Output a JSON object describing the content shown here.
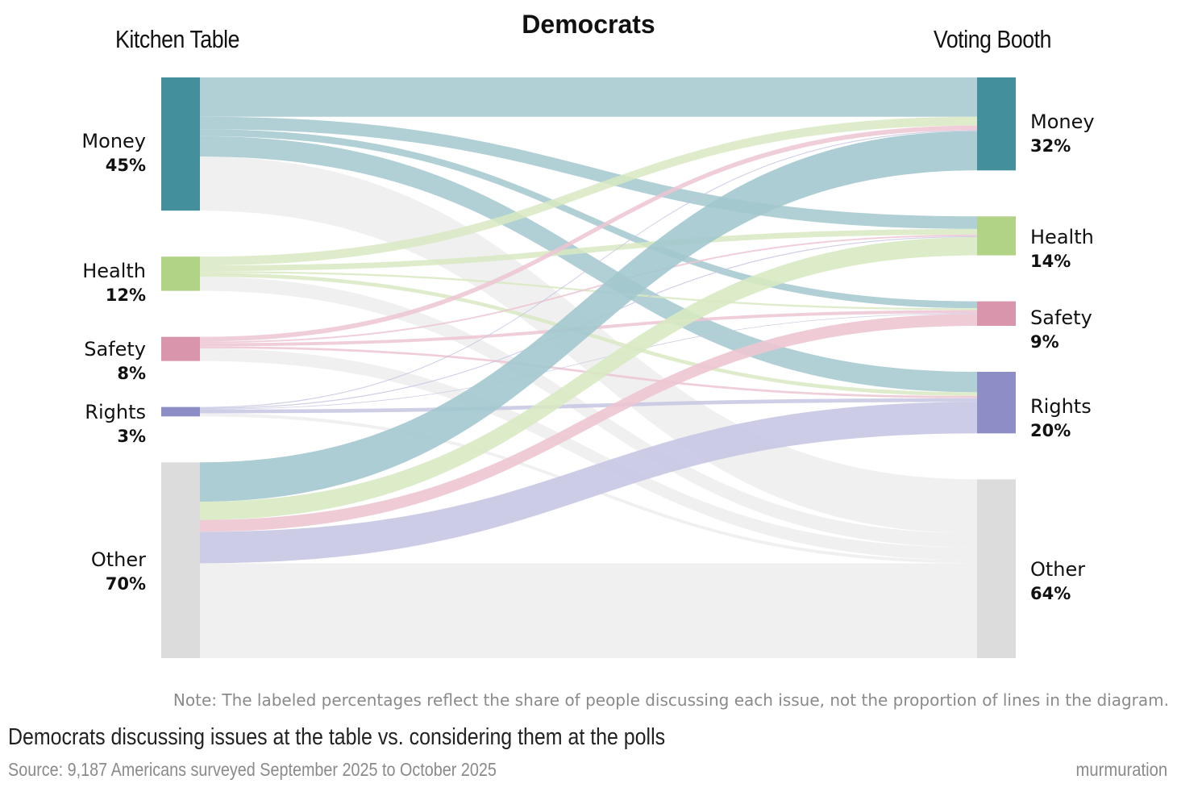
{
  "header": {
    "title": "Democrats",
    "left_heading": "Kitchen Table",
    "right_heading": "Voting Booth"
  },
  "footer": {
    "note": "Note: The labeled percentages reflect the share of people discussing each issue, not the proportion of lines in the diagram.",
    "subtitle": "Democrats discussing issues at the table vs. considering them at the polls",
    "source": "Source: 9,187 Americans surveyed September 2025 to October 2025",
    "brand": "murmuration"
  },
  "colors": {
    "Money": "#438f9b",
    "Health": "#b1d386",
    "Safety": "#d995ab",
    "Rights": "#8e8ec6",
    "Other": "#dcdcdc",
    "flow_Money": "#a2c8ce",
    "flow_Health": "#d8e9c2",
    "flow_Safety": "#edc5d2",
    "flow_Rights": "#c6c6e3",
    "flow_Other": "#eeeeee"
  },
  "chart_data": {
    "type": "sankey",
    "title": "Democrats",
    "source_label": "Kitchen Table",
    "target_label": "Voting Booth",
    "left_nodes": [
      {
        "name": "Money",
        "label": "Money",
        "pct": "45%",
        "value": 45
      },
      {
        "name": "Health",
        "label": "Health",
        "pct": "12%",
        "value": 12
      },
      {
        "name": "Safety",
        "label": "Safety",
        "pct": "8%",
        "value": 8
      },
      {
        "name": "Rights",
        "label": "Rights",
        "pct": "3%",
        "value": 3
      },
      {
        "name": "Other",
        "label": "Other",
        "pct": "70%",
        "value": 70
      }
    ],
    "right_nodes": [
      {
        "name": "Money",
        "label": "Money",
        "pct": "32%",
        "value": 32
      },
      {
        "name": "Health",
        "label": "Health",
        "pct": "14%",
        "value": 14
      },
      {
        "name": "Safety",
        "label": "Safety",
        "pct": "9%",
        "value": 9
      },
      {
        "name": "Rights",
        "label": "Rights",
        "pct": "20%",
        "value": 20
      },
      {
        "name": "Other",
        "label": "Other",
        "pct": "64%",
        "value": 64
      }
    ],
    "flows": [
      {
        "from": "Money",
        "to": "Money",
        "value": 12.5
      },
      {
        "from": "Money",
        "to": "Health",
        "value": 4.0
      },
      {
        "from": "Money",
        "to": "Safety",
        "value": 2.2
      },
      {
        "from": "Money",
        "to": "Rights",
        "value": 6.5
      },
      {
        "from": "Money",
        "to": "Other",
        "value": 17.2
      },
      {
        "from": "Health",
        "to": "Money",
        "value": 2.8
      },
      {
        "from": "Health",
        "to": "Health",
        "value": 1.8
      },
      {
        "from": "Health",
        "to": "Safety",
        "value": 0.6
      },
      {
        "from": "Health",
        "to": "Rights",
        "value": 1.2
      },
      {
        "from": "Health",
        "to": "Other",
        "value": 4.5
      },
      {
        "from": "Safety",
        "to": "Money",
        "value": 1.5
      },
      {
        "from": "Safety",
        "to": "Health",
        "value": 0.5
      },
      {
        "from": "Safety",
        "to": "Safety",
        "value": 1.0
      },
      {
        "from": "Safety",
        "to": "Rights",
        "value": 0.7
      },
      {
        "from": "Safety",
        "to": "Other",
        "value": 4.0
      },
      {
        "from": "Rights",
        "to": "Money",
        "value": 0.3
      },
      {
        "from": "Rights",
        "to": "Health",
        "value": 0.3
      },
      {
        "from": "Rights",
        "to": "Safety",
        "value": 0.2
      },
      {
        "from": "Rights",
        "to": "Rights",
        "value": 1.2
      },
      {
        "from": "Rights",
        "to": "Other",
        "value": 1.0
      },
      {
        "from": "Other",
        "to": "Money",
        "value": 12.5
      },
      {
        "from": "Other",
        "to": "Health",
        "value": 5.8
      },
      {
        "from": "Other",
        "to": "Safety",
        "value": 3.8
      },
      {
        "from": "Other",
        "to": "Rights",
        "value": 10.0
      },
      {
        "from": "Other",
        "to": "Other",
        "value": 30.2
      }
    ]
  }
}
